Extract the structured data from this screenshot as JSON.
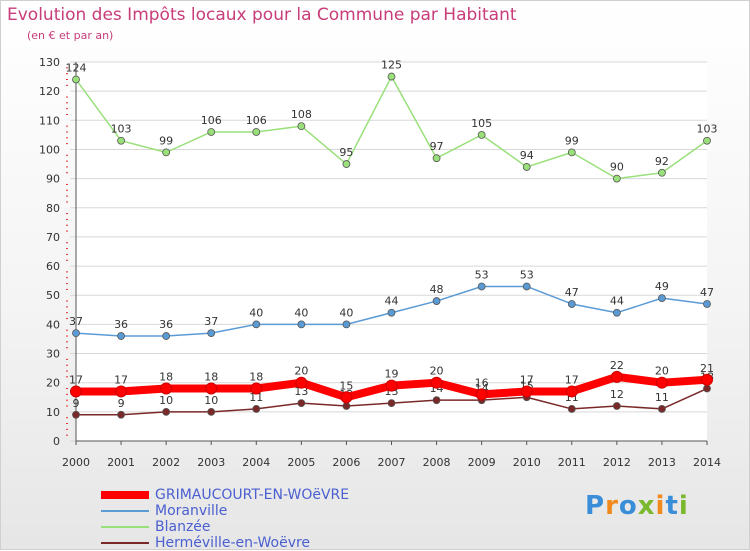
{
  "header": {
    "title": "Evolution des Impôts locaux pour la Commune par Habitant",
    "subtitle": "(en € et par an)"
  },
  "logo": {
    "text": "Proxiti",
    "colors": [
      "#3a8ed8",
      "#f08a1c",
      "#3a8ed8",
      "#7ab82e",
      "#f08a1c",
      "#3a8ed8",
      "#7ab82e"
    ]
  },
  "chart_data": {
    "type": "line",
    "title": "Evolution des Impôts locaux pour la Commune par Habitant",
    "subtitle": "(en € et par an)",
    "categories": [
      "2000",
      "2001",
      "2002",
      "2003",
      "2004",
      "2005",
      "2006",
      "2007",
      "2008",
      "2009",
      "2010",
      "2011",
      "2012",
      "2013",
      "2014"
    ],
    "ylim": [
      0,
      130
    ],
    "yticks": [
      0,
      10,
      20,
      30,
      40,
      50,
      60,
      70,
      80,
      90,
      100,
      110,
      120,
      130
    ],
    "grid": "horizontal",
    "legend_position": "bottom-left",
    "series": [
      {
        "name": "GRIMAUCOURT-EN-WOëVRE",
        "color": "#ff0000",
        "values": [
          17,
          17,
          18,
          18,
          18,
          20,
          15,
          19,
          20,
          16,
          17,
          17,
          22,
          20,
          21
        ]
      },
      {
        "name": "Moranville",
        "color": "#5b9bd5",
        "values": [
          37,
          36,
          36,
          37,
          40,
          40,
          40,
          44,
          48,
          53,
          53,
          47,
          44,
          49,
          47
        ]
      },
      {
        "name": "Blanzée",
        "color": "#99e07a",
        "values": [
          124,
          103,
          99,
          106,
          106,
          108,
          95,
          125,
          97,
          105,
          94,
          99,
          90,
          92,
          103
        ]
      },
      {
        "name": "Herméville-en-Woëvre",
        "color": "#7a2828",
        "values": [
          9,
          9,
          10,
          10,
          11,
          13,
          12,
          13,
          14,
          14,
          15,
          11,
          12,
          11,
          18
        ]
      }
    ]
  }
}
